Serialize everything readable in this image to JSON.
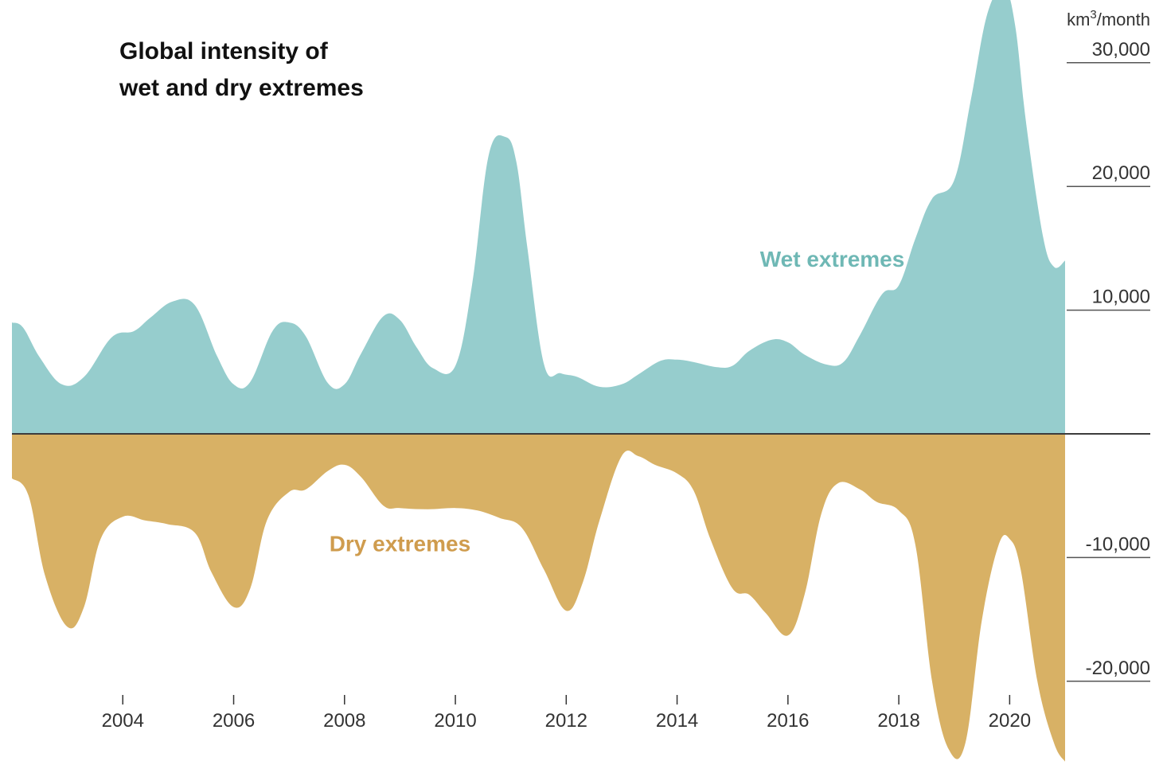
{
  "chart_data": {
    "type": "area",
    "title_lines": [
      "Global intensity of",
      "wet and dry extremes"
    ],
    "unit": {
      "base": "km",
      "sup": "3",
      "rest": "/month"
    },
    "ylim": [
      -26000,
      35000
    ],
    "xlim": [
      2002.0,
      2021.0
    ],
    "grid": false,
    "y_ticks": [
      {
        "value": 30000,
        "label": "30,000"
      },
      {
        "value": 20000,
        "label": "20,000"
      },
      {
        "value": 10000,
        "label": "10,000"
      },
      {
        "value": -10000,
        "label": "-10,000"
      },
      {
        "value": -20000,
        "label": "-20,000"
      }
    ],
    "x_ticks": [
      2004,
      2006,
      2008,
      2010,
      2012,
      2014,
      2016,
      2018,
      2020
    ],
    "series": [
      {
        "name": "Wet extremes",
        "color": "#96cdcd",
        "label_color": "#6fb8b5",
        "x": [
          2002.0,
          2002.2,
          2002.5,
          2002.9,
          2003.3,
          2003.8,
          2004.2,
          2004.5,
          2004.9,
          2005.3,
          2005.7,
          2006.0,
          2006.3,
          2006.7,
          2007.0,
          2007.3,
          2007.7,
          2008.0,
          2008.3,
          2008.7,
          2009.0,
          2009.3,
          2009.6,
          2010.0,
          2010.3,
          2010.6,
          2010.9,
          2011.1,
          2011.3,
          2011.6,
          2011.9,
          2012.2,
          2012.6,
          2013.0,
          2013.3,
          2013.7,
          2014.0,
          2014.3,
          2014.7,
          2015.0,
          2015.3,
          2015.7,
          2016.0,
          2016.3,
          2016.7,
          2017.0,
          2017.3,
          2017.7,
          2018.0,
          2018.3,
          2018.6,
          2019.0,
          2019.3,
          2019.6,
          2019.9,
          2020.1,
          2020.3,
          2020.6,
          2020.8,
          2021.0
        ],
        "values": [
          9000,
          8600,
          6200,
          4000,
          4600,
          7800,
          8300,
          9400,
          10700,
          10400,
          6300,
          4000,
          4200,
          8300,
          9000,
          7900,
          4100,
          4000,
          6500,
          9500,
          9200,
          7000,
          5300,
          5500,
          12000,
          22500,
          24000,
          22000,
          15000,
          5600,
          4900,
          4600,
          3800,
          4000,
          4800,
          5900,
          6000,
          5800,
          5400,
          5500,
          6700,
          7600,
          7400,
          6400,
          5600,
          5800,
          8000,
          11300,
          12000,
          15800,
          19000,
          20500,
          27000,
          34000,
          36000,
          33000,
          25000,
          16000,
          13500,
          14000
        ]
      },
      {
        "name": "Dry extremes",
        "color": "#d8b165",
        "label_color": "#cf9c4e",
        "x": [
          2002.0,
          2002.3,
          2002.6,
          2003.0,
          2003.3,
          2003.6,
          2004.0,
          2004.4,
          2004.8,
          2005.3,
          2005.6,
          2006.0,
          2006.3,
          2006.6,
          2007.0,
          2007.3,
          2007.7,
          2008.0,
          2008.3,
          2008.7,
          2009.0,
          2009.5,
          2010.0,
          2010.4,
          2010.8,
          2011.2,
          2011.6,
          2012.0,
          2012.3,
          2012.6,
          2013.0,
          2013.3,
          2013.6,
          2014.0,
          2014.3,
          2014.6,
          2015.0,
          2015.3,
          2015.6,
          2016.0,
          2016.3,
          2016.6,
          2016.9,
          2017.3,
          2017.6,
          2018.0,
          2018.3,
          2018.6,
          2018.9,
          2019.2,
          2019.5,
          2019.8,
          2020.0,
          2020.2,
          2020.5,
          2020.8,
          2021.0
        ],
        "values": [
          -3600,
          -5000,
          -11500,
          -15600,
          -14000,
          -8500,
          -6700,
          -7000,
          -7300,
          -8000,
          -11200,
          -14000,
          -12500,
          -7000,
          -4700,
          -4500,
          -3000,
          -2500,
          -3500,
          -5800,
          -6000,
          -6100,
          -6000,
          -6200,
          -6800,
          -7600,
          -11000,
          -14300,
          -12000,
          -7000,
          -1800,
          -1800,
          -2500,
          -3200,
          -4600,
          -8500,
          -12500,
          -13000,
          -14500,
          -16300,
          -13000,
          -6500,
          -4000,
          -4500,
          -5500,
          -6200,
          -9000,
          -20000,
          -25500,
          -25000,
          -15000,
          -9000,
          -8500,
          -11000,
          -20000,
          -25000,
          -26500
        ]
      }
    ],
    "annotations": [
      {
        "text": "Wet extremes",
        "x": 2016.8,
        "y": 13500,
        "color": "#6fb8b5"
      },
      {
        "text": "Dry extremes",
        "x": 2009.0,
        "y": -9500,
        "color": "#cf9c4e"
      }
    ]
  }
}
